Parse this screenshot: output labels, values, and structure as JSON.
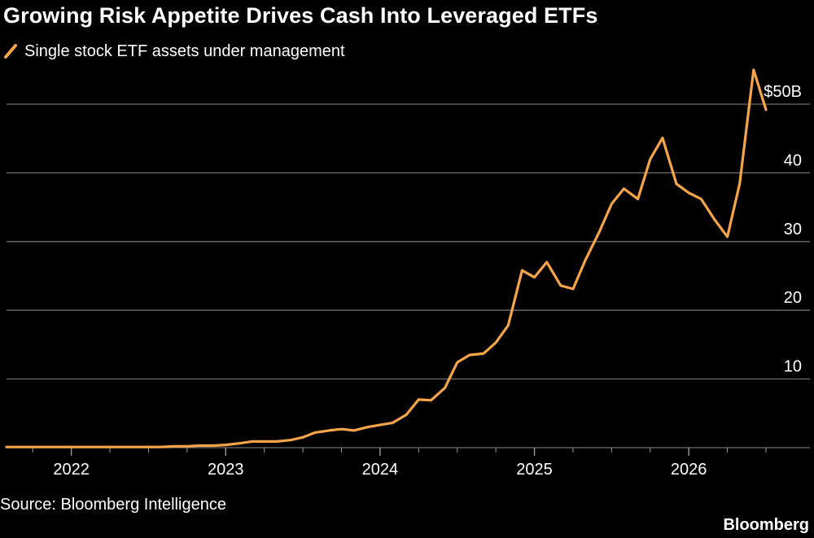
{
  "header": {
    "title": "Growing Risk Appetite Drives Cash Into Leveraged ETFs"
  },
  "footer": {
    "source": "Source: Bloomberg Intelligence",
    "brand": "Bloomberg"
  },
  "colors": {
    "background": "#000000",
    "series": "#f5a447",
    "gridline": "#6e6e6e",
    "text": "#ffffff"
  },
  "chart_data": {
    "type": "line",
    "xlabel": "",
    "ylabel": "",
    "xlim": [
      2021.58,
      2026.5
    ],
    "ylim": [
      0,
      50
    ],
    "grid": true,
    "legend_position": "top-left",
    "y_ticks": [
      {
        "value": 10,
        "label": "10"
      },
      {
        "value": 20,
        "label": "20"
      },
      {
        "value": 30,
        "label": "30"
      },
      {
        "value": 40,
        "label": "40"
      },
      {
        "value": 50,
        "label": "$50B"
      }
    ],
    "x_ticks": [
      {
        "value": 2022,
        "label": "2022"
      },
      {
        "value": 2023,
        "label": "2023"
      },
      {
        "value": 2024,
        "label": "2024"
      },
      {
        "value": 2025,
        "label": "2025"
      },
      {
        "value": 2026,
        "label": "2026"
      }
    ],
    "series": [
      {
        "name": "Single stock ETF assets under management",
        "points": [
          [
            2021.58,
            0.1
          ],
          [
            2021.67,
            0.1
          ],
          [
            2021.75,
            0.1
          ],
          [
            2021.83,
            0.1
          ],
          [
            2021.92,
            0.1
          ],
          [
            2022.0,
            0.1
          ],
          [
            2022.08,
            0.1
          ],
          [
            2022.17,
            0.1
          ],
          [
            2022.25,
            0.1
          ],
          [
            2022.33,
            0.1
          ],
          [
            2022.42,
            0.1
          ],
          [
            2022.5,
            0.1
          ],
          [
            2022.58,
            0.1
          ],
          [
            2022.67,
            0.2
          ],
          [
            2022.75,
            0.2
          ],
          [
            2022.83,
            0.3
          ],
          [
            2022.92,
            0.3
          ],
          [
            2023.0,
            0.4
          ],
          [
            2023.08,
            0.6
          ],
          [
            2023.17,
            0.9
          ],
          [
            2023.25,
            0.9
          ],
          [
            2023.33,
            0.9
          ],
          [
            2023.42,
            1.1
          ],
          [
            2023.5,
            1.5
          ],
          [
            2023.58,
            2.2
          ],
          [
            2023.67,
            2.5
          ],
          [
            2023.75,
            2.7
          ],
          [
            2023.83,
            2.5
          ],
          [
            2023.92,
            3.0
          ],
          [
            2024.0,
            3.3
          ],
          [
            2024.08,
            3.6
          ],
          [
            2024.17,
            4.8
          ],
          [
            2024.25,
            7.0
          ],
          [
            2024.33,
            6.9
          ],
          [
            2024.42,
            8.7
          ],
          [
            2024.5,
            12.4
          ],
          [
            2024.58,
            13.5
          ],
          [
            2024.67,
            13.7
          ],
          [
            2024.75,
            15.3
          ],
          [
            2024.83,
            17.8
          ],
          [
            2024.92,
            25.8
          ],
          [
            2025.0,
            24.8
          ],
          [
            2025.08,
            27.0
          ],
          [
            2025.17,
            23.6
          ],
          [
            2025.25,
            23.1
          ],
          [
            2025.33,
            27.3
          ],
          [
            2025.42,
            31.4
          ],
          [
            2025.5,
            35.5
          ],
          [
            2025.58,
            37.7
          ],
          [
            2025.67,
            36.2
          ],
          [
            2025.75,
            42.0
          ],
          [
            2025.83,
            45.1
          ],
          [
            2025.92,
            38.4
          ],
          [
            2026.0,
            37.1
          ],
          [
            2026.08,
            36.2
          ],
          [
            2026.17,
            33.1
          ],
          [
            2026.25,
            30.7
          ],
          [
            2026.33,
            38.5
          ],
          [
            2026.42,
            55.0
          ],
          [
            2026.5,
            49.2
          ]
        ]
      }
    ]
  }
}
